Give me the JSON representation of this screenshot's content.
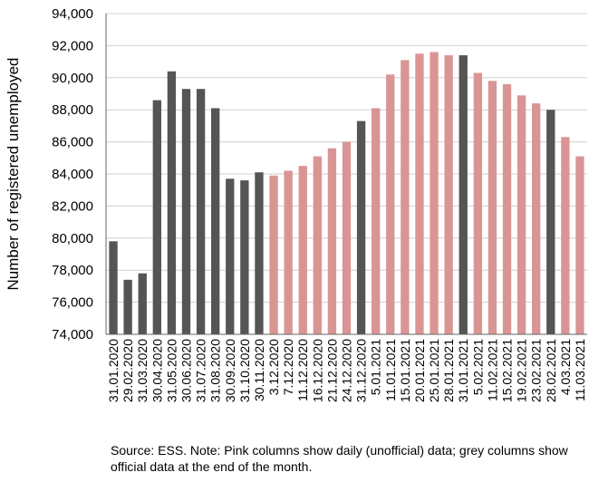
{
  "chart_data": {
    "type": "bar",
    "title": "",
    "xlabel": "",
    "ylabel": "Number of registered unemployed",
    "ylim": [
      74000,
      94000
    ],
    "yticks": [
      74000,
      76000,
      78000,
      80000,
      82000,
      84000,
      86000,
      88000,
      90000,
      92000,
      94000
    ],
    "ytick_labels": [
      "74,000",
      "76,000",
      "78,000",
      "80,000",
      "82,000",
      "84,000",
      "86,000",
      "88,000",
      "90,000",
      "92,000",
      "94,000"
    ],
    "grid": true,
    "legend": "none",
    "colors": {
      "official": "#555555",
      "daily": "#d99594"
    },
    "categories": [
      "31.01.2020",
      "29.02.2020",
      "31.03.2020",
      "30.04.2020",
      "31.05.2020",
      "30.06.2020",
      "31.07.2020",
      "31.08.2020",
      "30.09.2020",
      "31.10.2020",
      "30.11.2020",
      "3.12.2020",
      "7.12.2020",
      "11.12.2020",
      "16.12.2020",
      "21.12.2020",
      "24.12.2020",
      "31.12.2020",
      "5.01.2021",
      "11.01.2021",
      "15.01.2021",
      "20.01.2021",
      "25.01.2021",
      "28.01.2021",
      "31.01.2021",
      "5.02.2021",
      "11.02.2021",
      "15.02.2021",
      "19.02.2021",
      "23.02.2021",
      "28.02.2021",
      "4.03.2021",
      "11.03.2021"
    ],
    "values": [
      79800,
      77400,
      77800,
      88600,
      90400,
      89300,
      89300,
      88100,
      83700,
      83600,
      84100,
      83900,
      84200,
      84500,
      85100,
      85600,
      86000,
      87300,
      88100,
      90200,
      91100,
      91500,
      91600,
      91400,
      91400,
      90300,
      89800,
      89600,
      88900,
      88400,
      88000,
      86300,
      85100
    ],
    "kinds": [
      "official",
      "official",
      "official",
      "official",
      "official",
      "official",
      "official",
      "official",
      "official",
      "official",
      "official",
      "daily",
      "daily",
      "daily",
      "daily",
      "daily",
      "daily",
      "official",
      "daily",
      "daily",
      "daily",
      "daily",
      "daily",
      "daily",
      "official",
      "daily",
      "daily",
      "daily",
      "daily",
      "daily",
      "official",
      "daily",
      "daily"
    ]
  },
  "note": "Source: ESS. Note: Pink columns show daily (unofficial) data; grey columns show official data at the end of the month."
}
